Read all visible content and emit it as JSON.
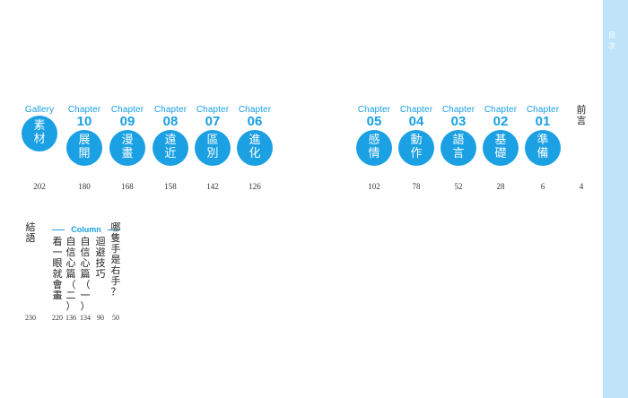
{
  "side_tab": [
    "目",
    "次"
  ],
  "chapters": [
    {
      "label": "Gallery",
      "number": "",
      "chars": [
        "素",
        "材"
      ],
      "page": "202"
    },
    {
      "label": "Chapter",
      "number": "10",
      "chars": [
        "展",
        "開"
      ],
      "page": "180"
    },
    {
      "label": "Chapter",
      "number": "09",
      "chars": [
        "漫",
        "畫"
      ],
      "page": "168"
    },
    {
      "label": "Chapter",
      "number": "08",
      "chars": [
        "遠",
        "近"
      ],
      "page": "158"
    },
    {
      "label": "Chapter",
      "number": "07",
      "chars": [
        "區",
        "別"
      ],
      "page": "142"
    },
    {
      "label": "Chapter",
      "number": "06",
      "chars": [
        "進",
        "化"
      ],
      "page": "126"
    },
    {
      "label": "Chapter",
      "number": "05",
      "chars": [
        "感",
        "情"
      ],
      "page": "102"
    },
    {
      "label": "Chapter",
      "number": "04",
      "chars": [
        "動",
        "作"
      ],
      "page": "78"
    },
    {
      "label": "Chapter",
      "number": "03",
      "chars": [
        "語",
        "言"
      ],
      "page": "52"
    },
    {
      "label": "Chapter",
      "number": "02",
      "chars": [
        "基",
        "礎"
      ],
      "page": "28"
    },
    {
      "label": "Chapter",
      "number": "01",
      "chars": [
        "準",
        "備"
      ],
      "page": "6"
    }
  ],
  "preface": {
    "chars": [
      "前",
      "言"
    ],
    "page": "4"
  },
  "column_header": "Column",
  "bottom_entries": [
    {
      "chars": [
        "結",
        "語"
      ],
      "page": "230"
    },
    {
      "chars": [
        "看",
        "一",
        "眼",
        "就",
        "會",
        "畫"
      ],
      "page": "220"
    },
    {
      "chars": [
        "自",
        "信",
        "心",
        "篇",
        "（",
        "二",
        "）"
      ],
      "page": "136"
    },
    {
      "chars": [
        "自",
        "信",
        "心",
        "篇",
        "（",
        "一",
        "）"
      ],
      "page": "134"
    },
    {
      "chars": [
        "迴",
        "避",
        "技",
        "巧"
      ],
      "page": "90"
    },
    {
      "chars": [
        "哪",
        "隻",
        "手",
        "是",
        "右",
        "手",
        "？"
      ],
      "page": "50"
    }
  ]
}
